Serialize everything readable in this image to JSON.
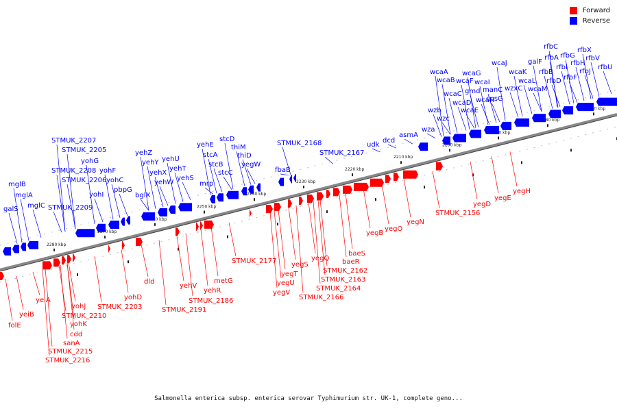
{
  "legend": {
    "forward": {
      "label": "Forward",
      "color": "#ff0000"
    },
    "reverse": {
      "label": "Reverse",
      "color": "#0000ff"
    }
  },
  "caption": "Salmonella enterica subsp. enterica serovar Typhimurium str. UK-1, complete geno...",
  "ticks": [
    "2280 kbp",
    "2270 kbp",
    "2260 kbp",
    "2250 kbp",
    "2240 kbp",
    "2230 kbp",
    "2220 kbp",
    "2210 kbp",
    "2200 kbp",
    "2190 kbp",
    "2180 kbp",
    "2170 kbp"
  ],
  "reverse_labels": [
    "galS",
    "mglB",
    "mglA",
    "mglC",
    "STMUK_2209",
    "STMUK_2208",
    "STMUK_2207",
    "STMUK_2206",
    "STMUK_2205",
    "yohI",
    "yohG",
    "yohF",
    "yohC",
    "pbpG",
    "bglX",
    "yehZ",
    "yehY",
    "yehX",
    "yehW",
    "yehU",
    "yehT",
    "yehS",
    "mrp",
    "yehE",
    "stcA",
    "stcB",
    "stcC",
    "stcD",
    "thiM",
    "thiD",
    "yegW",
    "fbaB",
    "STMUK_2168",
    "STMUK_2167",
    "udk",
    "dcd",
    "asmA",
    "wza",
    "wzb",
    "wzc",
    "wcaA",
    "wcaB",
    "wcaC",
    "wcaD",
    "wcaE",
    "wcaF",
    "wcaG",
    "gmd",
    "wcaH",
    "wcaI",
    "manC",
    "cpsG",
    "wcaJ",
    "wzxC",
    "wcaK",
    "wcaL",
    "wcaM",
    "galF",
    "rfbB",
    "rfbD",
    "rfbA",
    "rfbC",
    "rfbG",
    "rfbI",
    "rfbF",
    "rfbH",
    "rfbX",
    "rfbJ",
    "rfbV",
    "rfbU"
  ],
  "forward_labels": [
    "folE",
    "yeiB",
    "yeiA",
    "STMUK_2216",
    "STMUK_2215",
    "sanA",
    "cdd",
    "yohK",
    "STMUK_2210",
    "yohJ",
    "STMUK_2203",
    "yohD",
    "dld",
    "STMUK_2191",
    "yehV",
    "STMUK_2186",
    "yehR",
    "metG",
    "STMUK_2177",
    "yegV",
    "yegU",
    "yegT",
    "yegS",
    "STMUK_2166",
    "yegQ",
    "STMUK_2164",
    "STMUK_2163",
    "STMUK_2162",
    "baeR",
    "baeS",
    "yegB",
    "yegO",
    "yegN",
    "STMUK_2156",
    "yegD",
    "yegE",
    "yegH"
  ]
}
